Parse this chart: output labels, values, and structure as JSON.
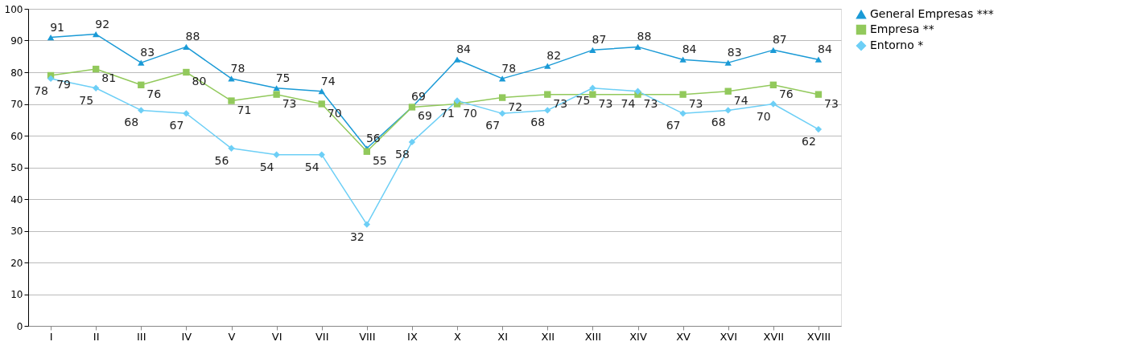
{
  "chart_data": {
    "type": "line",
    "categories": [
      "I",
      "II",
      "III",
      "IV",
      "V",
      "VI",
      "VII",
      "VIII",
      "IX",
      "X",
      "XI",
      "XII",
      "XIII",
      "XIV",
      "XV",
      "XVI",
      "XVII",
      "XVIII"
    ],
    "series": [
      {
        "name": "General Empresas ***",
        "color": "#1a9ad6",
        "marker": "triangle",
        "values": [
          91,
          92,
          83,
          88,
          78,
          75,
          74,
          56,
          69,
          84,
          78,
          82,
          87,
          88,
          84,
          83,
          87,
          84
        ]
      },
      {
        "name": "Empresa **",
        "color": "#92c95c",
        "marker": "square",
        "values": [
          79,
          81,
          76,
          80,
          71,
          73,
          70,
          55,
          69,
          70,
          72,
          73,
          73,
          73,
          73,
          74,
          76,
          73
        ]
      },
      {
        "name": "Entorno *",
        "color": "#6dcff6",
        "marker": "diamond",
        "values": [
          78,
          75,
          68,
          67,
          56,
          54,
          54,
          32,
          58,
          71,
          67,
          68,
          75,
          74,
          67,
          68,
          70,
          62
        ]
      }
    ],
    "ylim": [
      0,
      100
    ],
    "yticks": [
      0,
      10,
      20,
      30,
      40,
      50,
      60,
      70,
      80,
      90,
      100
    ],
    "grid": "y",
    "legend": "right",
    "data_labels": true
  }
}
